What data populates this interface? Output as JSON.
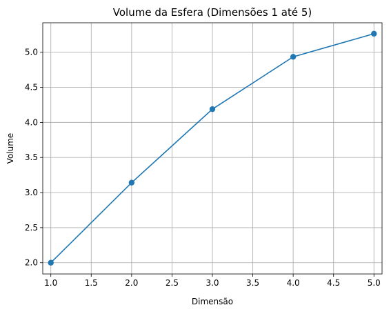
{
  "chart_data": {
    "type": "line",
    "title": "Volume da Esfera (Dimensões 1 até 5)",
    "xlabel": "Dimensão",
    "ylabel": "Volume",
    "x": [
      1,
      2,
      3,
      4,
      5
    ],
    "series": [
      {
        "values": [
          2.0,
          3.1416,
          4.1888,
          4.9348,
          5.2638
        ],
        "color": "#1f77b4",
        "marker": "circle"
      }
    ],
    "xlim": [
      0.9,
      5.1
    ],
    "ylim": [
      1.84,
      5.42
    ],
    "xticks": [
      1.0,
      1.5,
      2.0,
      2.5,
      3.0,
      3.5,
      4.0,
      4.5,
      5.0
    ],
    "xtick_labels": [
      "1.0",
      "1.5",
      "2.0",
      "2.5",
      "3.0",
      "3.5",
      "4.0",
      "4.5",
      "5.0"
    ],
    "yticks": [
      2.0,
      2.5,
      3.0,
      3.5,
      4.0,
      4.5,
      5.0
    ],
    "ytick_labels": [
      "2.0",
      "2.5",
      "3.0",
      "3.5",
      "4.0",
      "4.5",
      "5.0"
    ],
    "grid": true
  }
}
